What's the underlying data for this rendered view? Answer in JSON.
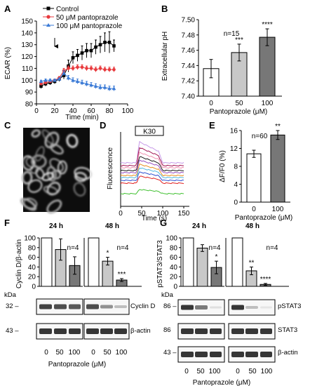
{
  "chart_data": [
    {
      "panel": "A",
      "type": "line",
      "xlabel": "Time (min)",
      "ylabel": "ECAR (%)",
      "xlim": [
        0,
        100
      ],
      "ylim": [
        80,
        150
      ],
      "xticks": [
        "0",
        "20",
        "40",
        "60",
        "80",
        "100"
      ],
      "yticks": [
        "80",
        "90",
        "100",
        "110",
        "120",
        "130",
        "140",
        "150"
      ],
      "series": [
        {
          "name": "Control",
          "color": "#000000",
          "marker": "square",
          "x": [
            5,
            10,
            15,
            20,
            25,
            30,
            35,
            40,
            45,
            50,
            55,
            60,
            65,
            70,
            75,
            80,
            85
          ],
          "y": [
            95,
            97,
            98,
            99,
            101,
            104,
            112,
            119,
            121,
            123,
            125,
            125,
            128,
            130,
            132,
            132,
            129
          ],
          "err": [
            2,
            2,
            2,
            2,
            2,
            3,
            5,
            5,
            5,
            6,
            6,
            6,
            6,
            7,
            8,
            9,
            5
          ]
        },
        {
          "name": "50 μM pantoprazole",
          "color": "#e8393c",
          "marker": "circle",
          "x": [
            5,
            10,
            15,
            20,
            25,
            30,
            35,
            40,
            45,
            50,
            55,
            60,
            65,
            70,
            75,
            80,
            85
          ],
          "y": [
            97,
            98,
            99,
            100,
            102,
            108,
            110,
            110,
            111,
            111,
            110,
            110,
            109,
            110,
            109,
            109,
            109
          ],
          "err": [
            1,
            1,
            1,
            1,
            1,
            2,
            2,
            2,
            2,
            2,
            2,
            2,
            2,
            2,
            2,
            2,
            2
          ]
        },
        {
          "name": "100 μM pantoprazole",
          "color": "#3a7ad6",
          "marker": "triangle",
          "x": [
            5,
            10,
            15,
            20,
            25,
            30,
            35,
            40,
            45,
            50,
            55,
            60,
            65,
            70,
            75,
            80,
            85
          ],
          "y": [
            99,
            100,
            100,
            100,
            101,
            106,
            102,
            100,
            99,
            98,
            97,
            96,
            95,
            94,
            94,
            93,
            93
          ],
          "err": [
            1,
            1,
            1,
            1,
            1,
            2,
            2,
            2,
            2,
            2,
            2,
            2,
            2,
            2,
            2,
            2,
            2
          ]
        }
      ],
      "arrow_at": 20
    },
    {
      "panel": "B",
      "type": "bar",
      "ylabel": "Extracellular pH",
      "xlabel": "Pantoprazole (μM)",
      "categories": [
        "0",
        "50",
        "100"
      ],
      "values": [
        7.436,
        7.457,
        7.477
      ],
      "err": [
        0.012,
        0.011,
        0.011
      ],
      "ylim": [
        7.4,
        7.5
      ],
      "yticks": [
        "7.40",
        "7.42",
        "7.44",
        "7.46",
        "7.48",
        "7.50"
      ],
      "sig": [
        "",
        "***",
        "****"
      ],
      "n_label": "n=15"
    },
    {
      "panel": "E",
      "type": "bar",
      "ylabel": "ΔF/F0 (%)",
      "xlabel": "Pantoprazole (μM)",
      "categories": [
        "0",
        "100"
      ],
      "values": [
        10.8,
        15.0
      ],
      "err": [
        0.8,
        1.0
      ],
      "ylim": [
        0,
        16
      ],
      "yticks": [
        "0",
        "4",
        "8",
        "12",
        "16"
      ],
      "sig": [
        "",
        "**"
      ],
      "n_label": "n=60"
    },
    {
      "panel": "F-24h",
      "type": "bar",
      "ylabel": "Cyclin D/β-actin",
      "title": "24 h",
      "categories": [
        "0",
        "50",
        "100"
      ],
      "values": [
        100,
        76,
        43
      ],
      "err": [
        0,
        22,
        18
      ],
      "ylim": [
        0,
        100
      ],
      "yticks": [
        "0",
        "20",
        "40",
        "60",
        "80",
        "100"
      ],
      "sig": [
        "",
        "",
        ""
      ],
      "n_label": "n=4"
    },
    {
      "panel": "F-48h",
      "type": "bar",
      "title": "48 h",
      "categories": [
        "0",
        "50",
        "100"
      ],
      "values": [
        100,
        52,
        13
      ],
      "err": [
        0,
        8,
        3
      ],
      "ylim": [
        0,
        100
      ],
      "sig": [
        "",
        "*",
        "***"
      ],
      "n_label": "n=4"
    },
    {
      "panel": "G-24h",
      "type": "bar",
      "ylabel": "pSTAT3/STAT3",
      "title": "24 h",
      "categories": [
        "0",
        "50",
        "100"
      ],
      "values": [
        100,
        79,
        39
      ],
      "err": [
        0,
        7,
        13
      ],
      "ylim": [
        0,
        100
      ],
      "yticks": [
        "0",
        "20",
        "40",
        "60",
        "80",
        "100"
      ],
      "sig": [
        "",
        "",
        "*"
      ],
      "n_label": "n=4"
    },
    {
      "panel": "G-48h",
      "type": "bar",
      "title": "48 h",
      "categories": [
        "0",
        "50",
        "100"
      ],
      "values": [
        100,
        32,
        4
      ],
      "err": [
        0,
        8,
        2
      ],
      "ylim": [
        0,
        100
      ],
      "sig": [
        "",
        "**",
        "****"
      ],
      "n_label": "n=4"
    }
  ],
  "labels": {
    "A": "A",
    "B": "B",
    "C": "C",
    "D": "D",
    "E": "E",
    "F": "F",
    "G": "G"
  },
  "panel_d": {
    "ylabel": "Fluorescence",
    "xlabel": "Time (s)",
    "xticks": [
      "0",
      "50",
      "100",
      "150"
    ],
    "stimulus": "K30",
    "trace_colors": [
      "#c79be8",
      "#a01050",
      "#f090b0",
      "#1a1a1a",
      "#9a50c0",
      "#e89020",
      "#50b8e0",
      "#3050d0",
      "#e02020",
      "#40c030"
    ]
  },
  "blots": {
    "kda": "kDa",
    "f_mw": [
      "32 –",
      "43 –"
    ],
    "g_mw": [
      "86 –",
      "86",
      "43 –"
    ],
    "f_proteins": [
      "Cyclin D",
      "β-actin"
    ],
    "g_proteins": [
      "pSTAT3",
      "STAT3",
      "β-actin"
    ],
    "doses": [
      "0",
      "50",
      "100"
    ],
    "xlabel": "Pantoprazole (μM)"
  }
}
